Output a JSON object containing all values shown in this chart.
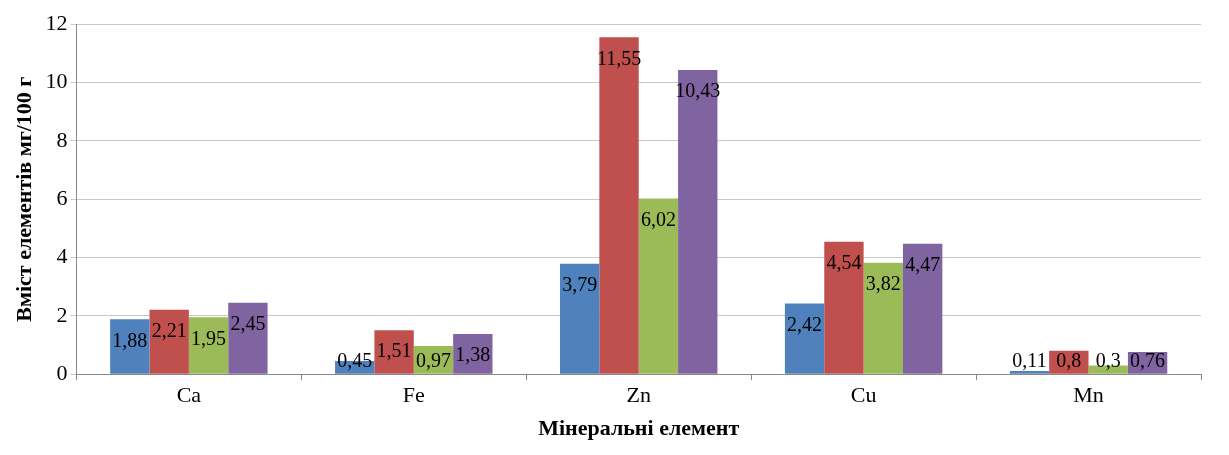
{
  "chart_data": {
    "type": "bar",
    "xlabel": "Мінеральні елемент",
    "ylabel": "Вміст елементів мг/100 г",
    "categories": [
      "Ca",
      "Fe",
      "Zn",
      "Cu",
      "Mn"
    ],
    "series": [
      {
        "color": "#4f81bd",
        "values": [
          1.88,
          0.45,
          3.79,
          2.42,
          0.11
        ],
        "value_labels": [
          "1,88",
          "0,45",
          "3,79",
          "2,42",
          "0,11"
        ]
      },
      {
        "color": "#c0504d",
        "values": [
          2.21,
          1.51,
          11.55,
          4.54,
          0.8
        ],
        "value_labels": [
          "2,21",
          "1,51",
          "11,55",
          "4,54",
          "0,8"
        ]
      },
      {
        "color": "#9bbb59",
        "values": [
          1.95,
          0.97,
          6.02,
          3.82,
          0.3
        ],
        "value_labels": [
          "1,95",
          "0,97",
          "6,02",
          "3,82",
          "0,3"
        ]
      },
      {
        "color": "#8064a2",
        "values": [
          2.45,
          1.38,
          10.43,
          4.47,
          0.76
        ],
        "value_labels": [
          "2,45",
          "1,38",
          "10,43",
          "4,47",
          "0,76"
        ]
      }
    ],
    "ylim": [
      0,
      12
    ],
    "yticks": [
      0,
      2,
      4,
      6,
      8,
      10,
      12
    ],
    "grid": "y",
    "legend": false
  }
}
